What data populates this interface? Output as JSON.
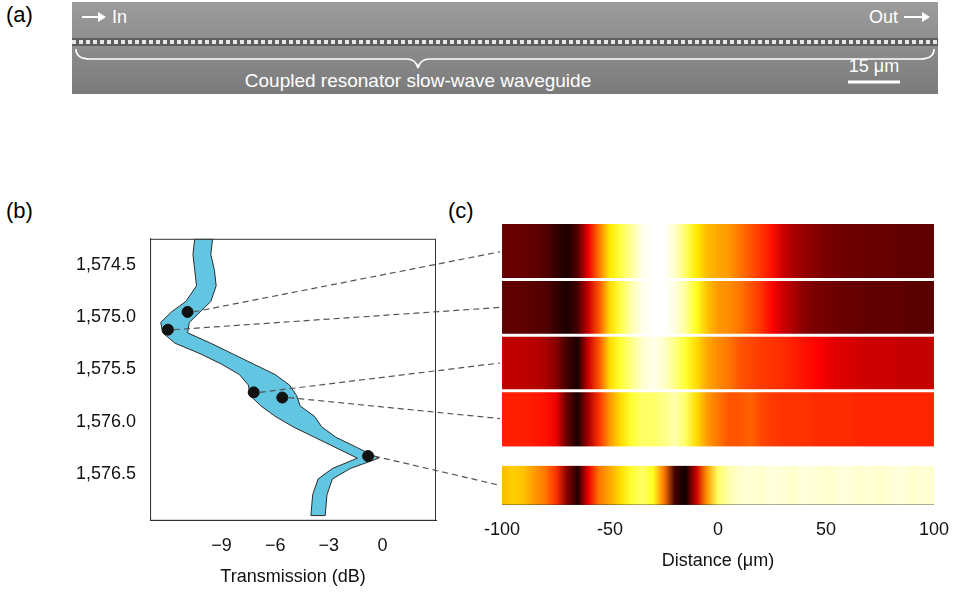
{
  "panel_a": {
    "letter": "(a)",
    "input": "In",
    "output": "Out",
    "caption": "Coupled resonator slow-wave waveguide",
    "scale_bar": "15 μm"
  },
  "chart_data": [
    {
      "letter": "(b)",
      "type": "area",
      "x_label": "Transmission (dB)",
      "xlim": [
        -13,
        3
      ],
      "xticks": [
        {
          "value": -9,
          "label": "−9"
        },
        {
          "value": -6,
          "label": "−6"
        },
        {
          "value": -3,
          "label": "−3"
        },
        0
      ],
      "ylim": [
        1576.95,
        1574.25
      ],
      "yticks": [
        {
          "value": 1574.5,
          "label": "1,574.5"
        },
        {
          "value": 1575.0,
          "label": "1,575.0"
        },
        {
          "value": 1575.5,
          "label": "1,575.5"
        },
        {
          "value": 1576.0,
          "label": "1,576.0"
        },
        {
          "value": 1576.5,
          "label": "1,576.5"
        }
      ],
      "grid": false,
      "band": {
        "color": "#62c6e2",
        "y": [
          1574.25,
          1574.4,
          1574.55,
          1574.7,
          1574.85,
          1574.95,
          1575.05,
          1575.15,
          1575.25,
          1575.35,
          1575.45,
          1575.55,
          1575.65,
          1575.75,
          1575.85,
          1575.95,
          1576.05,
          1576.15,
          1576.25,
          1576.35,
          1576.45,
          1576.55,
          1576.7,
          1576.9
        ],
        "x_low": [
          -10.5,
          -10.6,
          -10.5,
          -10.4,
          -11.0,
          -11.8,
          -12.4,
          -12.3,
          -11.6,
          -10.2,
          -9.0,
          -8.0,
          -7.5,
          -7.4,
          -6.8,
          -6.0,
          -5.0,
          -3.8,
          -2.6,
          -1.4,
          -2.8,
          -3.6,
          -3.9,
          -4.0
        ],
        "x_high": [
          -9.5,
          -9.6,
          -9.4,
          -9.3,
          -9.6,
          -10.2,
          -10.8,
          -10.9,
          -9.6,
          -8.4,
          -7.2,
          -6.0,
          -5.2,
          -4.8,
          -4.6,
          -3.8,
          -3.4,
          -2.6,
          -1.4,
          -0.2,
          -1.8,
          -2.8,
          -3.1,
          -3.2
        ]
      },
      "points": {
        "color": "#111111",
        "marker": "circle",
        "x": [
          -10.9,
          -12.0,
          -7.2,
          -5.6,
          -0.8
        ],
        "y": [
          1574.95,
          1575.12,
          1575.72,
          1575.77,
          1576.33
        ]
      }
    },
    {
      "letter": "(c)",
      "type": "heatmap",
      "x_label": "Distance (μm)",
      "xlim": [
        -100,
        100
      ],
      "xticks": [
        -100,
        -50,
        0,
        50,
        100
      ],
      "grid": false,
      "tick_labels": "x",
      "color": "hot",
      "zlim": [
        0,
        1
      ],
      "x": [
        -100,
        -95,
        -90,
        -85,
        -80,
        -75,
        -70,
        -65,
        -60,
        -55,
        -50,
        -45,
        -40,
        -35,
        -30,
        -25,
        -20,
        -15,
        -10,
        -5,
        0,
        5,
        10,
        15,
        20,
        25,
        30,
        35,
        40,
        45,
        50,
        55,
        60,
        65,
        70,
        75,
        80,
        85,
        90,
        95,
        100
      ],
      "cells": [
        [
          0.15,
          0.15,
          0.15,
          0.14,
          0.12,
          0.08,
          0.04,
          0.12,
          0.35,
          0.55,
          0.72,
          0.82,
          0.9,
          0.98,
          1,
          1,
          0.95,
          0.85,
          0.72,
          0.65,
          0.62,
          0.6,
          0.55,
          0.5,
          0.45,
          0.4,
          0.3,
          0.25,
          0.22,
          0.2,
          0.18,
          0.17,
          0.16,
          0.16,
          0.15,
          0.15,
          0.15,
          0.14,
          0.14,
          0.14,
          0.14
        ],
        [
          0.14,
          0.14,
          0.14,
          0.13,
          0.12,
          0.08,
          0.04,
          0.1,
          0.3,
          0.5,
          0.7,
          0.82,
          0.92,
          0.98,
          1,
          1,
          0.97,
          0.9,
          0.78,
          0.66,
          0.6,
          0.58,
          0.55,
          0.5,
          0.45,
          0.38,
          0.3,
          0.25,
          0.2,
          0.18,
          0.17,
          0.16,
          0.15,
          0.15,
          0.14,
          0.14,
          0.14,
          0.14,
          0.13,
          0.13,
          0.13
        ],
        [
          0.28,
          0.28,
          0.28,
          0.27,
          0.25,
          0.2,
          0.1,
          0.04,
          0.3,
          0.5,
          0.7,
          0.8,
          0.88,
          0.95,
          0.98,
          0.95,
          0.88,
          0.8,
          0.7,
          0.62,
          0.58,
          0.55,
          0.5,
          0.48,
          0.46,
          0.45,
          0.44,
          0.42,
          0.4,
          0.38,
          0.35,
          0.33,
          0.32,
          0.31,
          0.3,
          0.3,
          0.3,
          0.29,
          0.29,
          0.29,
          0.29
        ],
        [
          0.42,
          0.42,
          0.42,
          0.41,
          0.4,
          0.35,
          0.15,
          0.04,
          0.25,
          0.45,
          0.6,
          0.7,
          0.8,
          0.85,
          0.85,
          0.88,
          0.92,
          0.85,
          0.7,
          0.6,
          0.55,
          0.5,
          0.5,
          0.52,
          0.48,
          0.46,
          0.45,
          0.45,
          0.45,
          0.44,
          0.44,
          0.44,
          0.44,
          0.43,
          0.43,
          0.43,
          0.43,
          0.43,
          0.43,
          0.43,
          0.43
        ],
        [
          0.65,
          0.68,
          0.66,
          0.6,
          0.55,
          0.45,
          0.2,
          0.05,
          0.35,
          0.55,
          0.62,
          0.7,
          0.8,
          0.85,
          0.78,
          0.55,
          0.1,
          0.02,
          0.3,
          0.6,
          0.85,
          0.92,
          0.95,
          0.96,
          0.95,
          0.97,
          0.96,
          0.95,
          0.97,
          0.96,
          0.95,
          0.96,
          0.97,
          0.95,
          0.96,
          0.95,
          0.96,
          0.97,
          0.95,
          0.96,
          0.95
        ]
      ]
    }
  ]
}
